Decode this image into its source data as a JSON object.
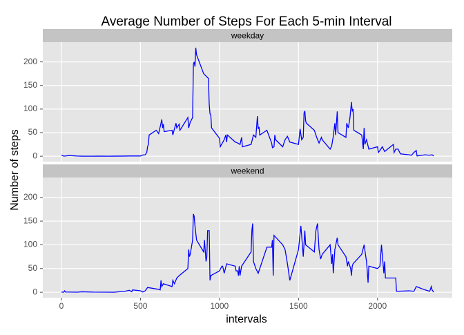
{
  "chart_data": {
    "type": "line",
    "title": "Average Number of Steps For Each 5-min Interval",
    "xlabel": "intervals",
    "ylabel": "Number of steps",
    "color": "#0000ff",
    "grid": true,
    "xlim": [
      -117.75,
      2472.75
    ],
    "xticks": [
      0,
      500,
      1000,
      1500,
      2000
    ],
    "ylim": [
      -11.5,
      241.9
    ],
    "yticks": [
      0,
      50,
      100,
      150,
      200
    ],
    "panels": [
      {
        "label": "weekday",
        "x": [
          0,
          15,
          30,
          45,
          100,
          130,
          200,
          230,
          300,
          330,
          400,
          430,
          500,
          515,
          530,
          540,
          545,
          550,
          555,
          600,
          615,
          630,
          635,
          640,
          645,
          650,
          700,
          705,
          715,
          725,
          730,
          745,
          750,
          800,
          805,
          815,
          830,
          835,
          840,
          845,
          850,
          855,
          900,
          930,
          935,
          940,
          945,
          950,
          1000,
          1005,
          1030,
          1040,
          1045,
          1050,
          1100,
          1115,
          1130,
          1140,
          1145,
          1200,
          1215,
          1230,
          1240,
          1245,
          1250,
          1255,
          1300,
          1330,
          1335,
          1345,
          1350,
          1355,
          1400,
          1415,
          1430,
          1445,
          1500,
          1510,
          1520,
          1530,
          1535,
          1540,
          1545,
          1550,
          1600,
          1615,
          1630,
          1645,
          1650,
          1700,
          1710,
          1720,
          1730,
          1735,
          1740,
          1745,
          1750,
          1800,
          1805,
          1815,
          1825,
          1835,
          1840,
          1845,
          1850,
          1900,
          1910,
          1915,
          1920,
          1930,
          1945,
          2000,
          2005,
          2015,
          2030,
          2045,
          2100,
          2105,
          2115,
          2130,
          2145,
          2200,
          2215,
          2230,
          2245,
          2250,
          2300,
          2330,
          2345,
          2355
        ],
        "values": [
          2.3,
          0.2,
          0.6,
          1.5,
          0.4,
          0.1,
          0,
          0.2,
          0,
          0.1,
          0.3,
          0.5,
          0.5,
          2.5,
          3,
          8,
          20,
          25,
          45,
          55,
          48,
          70,
          78,
          60,
          68,
          52,
          55,
          45,
          58,
          70,
          60,
          68,
          55,
          82,
          60,
          72,
          82,
          195,
          200,
          190,
          230,
          215,
          175,
          165,
          110,
          90,
          88,
          60,
          38,
          20,
          35,
          45,
          30,
          45,
          30,
          28,
          25,
          40,
          20,
          25,
          45,
          40,
          85,
          58,
          62,
          45,
          55,
          28,
          18,
          20,
          45,
          35,
          20,
          35,
          42,
          30,
          25,
          58,
          35,
          40,
          92,
          96,
          75,
          70,
          55,
          40,
          28,
          40,
          35,
          15,
          22,
          42,
          70,
          45,
          70,
          95,
          50,
          40,
          70,
          60,
          80,
          115,
          95,
          100,
          55,
          45,
          15,
          60,
          25,
          35,
          15,
          20,
          8,
          12,
          20,
          10,
          25,
          8,
          15,
          15,
          5,
          3,
          2,
          8,
          12,
          0.5,
          3,
          2,
          3,
          0.5
        ]
      },
      {
        "label": "weekend",
        "x": [
          0,
          15,
          20,
          25,
          100,
          130,
          200,
          300,
          330,
          400,
          415,
          430,
          445,
          450,
          500,
          515,
          530,
          545,
          600,
          615,
          625,
          630,
          635,
          645,
          700,
          705,
          715,
          730,
          745,
          800,
          805,
          810,
          815,
          830,
          835,
          840,
          845,
          855,
          900,
          905,
          915,
          920,
          925,
          935,
          940,
          945,
          1000,
          1015,
          1020,
          1030,
          1045,
          1100,
          1105,
          1115,
          1120,
          1125,
          1130,
          1140,
          1150,
          1200,
          1205,
          1210,
          1215,
          1220,
          1230,
          1245,
          1300,
          1330,
          1335,
          1340,
          1345,
          1400,
          1415,
          1430,
          1445,
          1500,
          1515,
          1520,
          1530,
          1540,
          1545,
          1600,
          1610,
          1620,
          1630,
          1640,
          1650,
          1700,
          1710,
          1715,
          1720,
          1730,
          1745,
          1750,
          1800,
          1810,
          1815,
          1830,
          1835,
          1840,
          1845,
          1900,
          1915,
          1930,
          1935,
          1940,
          1945,
          2000,
          2015,
          2025,
          2030,
          2040,
          2045,
          2050,
          2100,
          2115,
          2120,
          2200,
          2230,
          2245,
          2300,
          2330,
          2340,
          2345,
          2355
        ],
        "values": [
          0.2,
          0.2,
          3,
          0.5,
          0.2,
          1,
          0.3,
          0.1,
          0,
          2,
          3,
          4,
          1,
          5,
          3,
          0.5,
          3,
          10,
          7,
          6,
          5,
          25,
          12,
          18,
          12,
          25,
          18,
          30,
          35,
          50,
          90,
          75,
          80,
          110,
          165,
          160,
          140,
          110,
          85,
          110,
          65,
          75,
          130,
          130,
          25,
          35,
          45,
          55,
          55,
          40,
          60,
          55,
          45,
          45,
          35,
          55,
          35,
          55,
          60,
          85,
          130,
          145,
          65,
          60,
          50,
          40,
          95,
          95,
          110,
          35,
          120,
          100,
          90,
          60,
          25,
          90,
          140,
          120,
          75,
          130,
          100,
          85,
          130,
          145,
          90,
          70,
          80,
          100,
          60,
          80,
          40,
          90,
          115,
          100,
          75,
          55,
          65,
          50,
          35,
          55,
          60,
          80,
          100,
          65,
          45,
          20,
          55,
          50,
          55,
          100,
          80,
          40,
          65,
          30,
          30,
          30,
          2,
          3,
          2,
          12,
          5,
          2,
          12,
          5,
          0.2
        ]
      }
    ]
  }
}
